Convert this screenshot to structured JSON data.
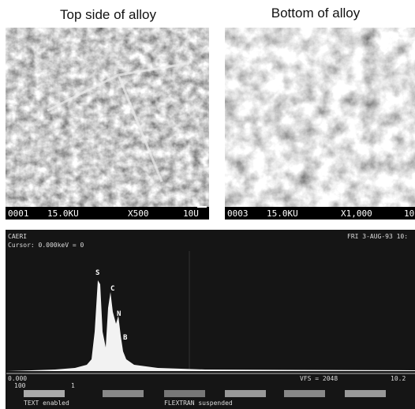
{
  "figure": {
    "left_caption": "Top side of alloy",
    "right_caption": "Bottom of alloy",
    "left_image": {
      "id": "0001",
      "voltage": "15.0KU",
      "magnification": "X500",
      "scale": "10U"
    },
    "right_image": {
      "id": "0003",
      "voltage": "15.0KU",
      "magnification": "X1,000",
      "scale": "10"
    },
    "spectrum": {
      "header_left": "CAERI",
      "cursor": "Cursor: 0.000keV = 0",
      "header_right": "FRI 3-AUG-93 10:",
      "peaks": [
        "S",
        "C",
        "N",
        "B"
      ],
      "axis_start": "0.000",
      "vfs": "VFS = 2048",
      "axis_end": "10.2",
      "scale_left": "100",
      "marker": "1",
      "status_left": "TEXT enabled",
      "status_right": "FLEXTRAN suspended"
    }
  }
}
